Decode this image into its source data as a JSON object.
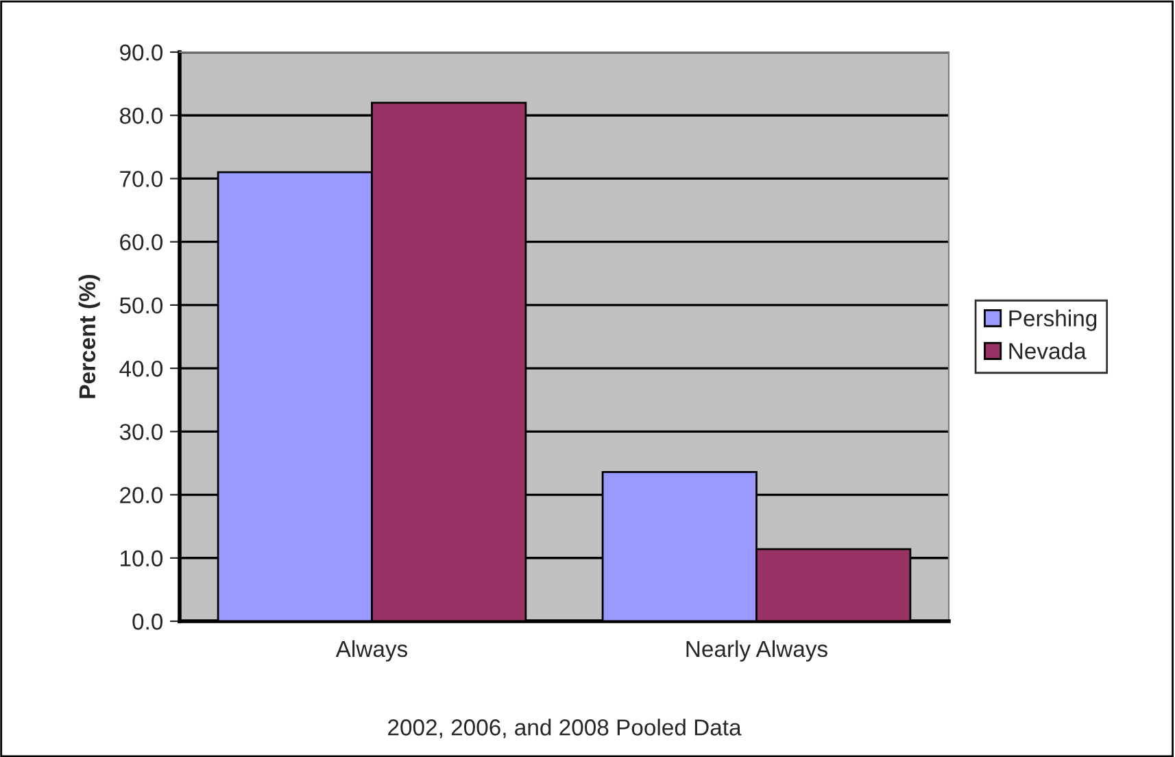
{
  "chart_data": {
    "type": "bar",
    "categories": [
      "Always",
      "Nearly Always"
    ],
    "series": [
      {
        "name": "Pershing",
        "color": "#9999ff",
        "values": [
          71.0,
          23.6
        ]
      },
      {
        "name": "Nevada",
        "color": "#993366",
        "values": [
          82.0,
          11.4
        ]
      }
    ],
    "xlabel": "2002, 2006, and 2008 Pooled Data",
    "ylabel": "Percent (%)",
    "ylim": [
      0,
      90
    ],
    "yticks": [
      {
        "value": 0,
        "label": "0.0"
      },
      {
        "value": 10,
        "label": "10.0"
      },
      {
        "value": 20,
        "label": "20.0"
      },
      {
        "value": 30,
        "label": "30.0"
      },
      {
        "value": 40,
        "label": "40.0"
      },
      {
        "value": 50,
        "label": "50.0"
      },
      {
        "value": 60,
        "label": "60.0"
      },
      {
        "value": 70,
        "label": "70.0"
      },
      {
        "value": 80,
        "label": "80.0"
      },
      {
        "value": 90,
        "label": "90.0"
      }
    ],
    "grid": "y",
    "legend": "right"
  }
}
